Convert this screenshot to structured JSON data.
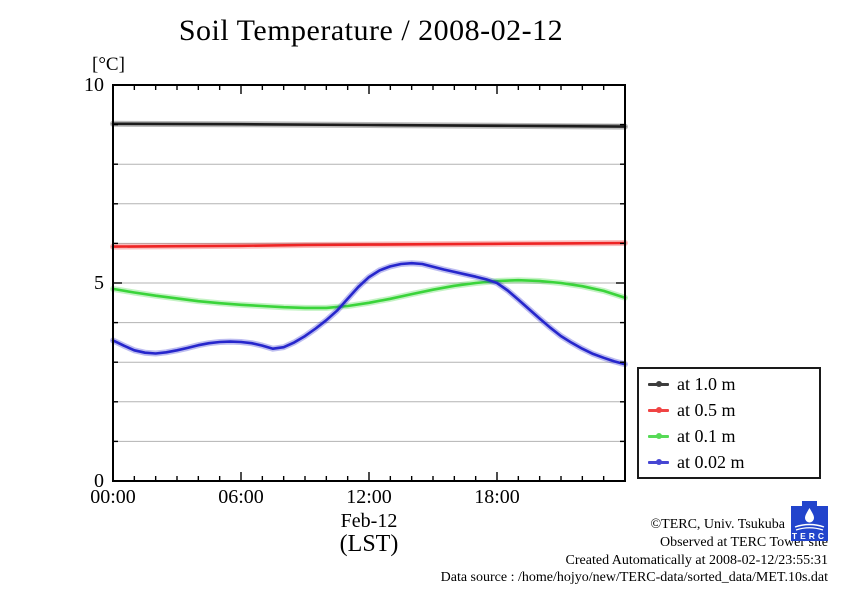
{
  "title": "Soil Temperature / 2008-02-12",
  "y_axis": {
    "unit": "[°C]",
    "tick_labels": [
      "10",
      "5",
      "0"
    ]
  },
  "x_axis": {
    "tick_labels": [
      "00:00",
      "06:00",
      "12:00",
      "18:00"
    ],
    "date_label": "Feb-12",
    "timezone_label": "(LST)"
  },
  "footer": {
    "copyright": "©TERC, Univ. Tsukuba",
    "observed": "Observed at TERC Tower site",
    "created": "Created Automatically at 2008-02-12/23:55:31",
    "datasource": "Data source : /home/hojyo/new/TERC-data/sorted_data/MET.10s.dat",
    "logo_text": "TERC"
  },
  "colors": {
    "grid": "#b3b3b3",
    "axis": "#000000",
    "logo_blue": "#2244cc"
  },
  "chart_data": {
    "type": "line",
    "title": "Soil Temperature / 2008-02-12",
    "xlabel": "Feb-12 (LST)",
    "ylabel": "[°C]",
    "xlim": [
      0,
      24
    ],
    "ylim": [
      0,
      10
    ],
    "x_unit": "hour of day",
    "x_major_ticks": [
      0,
      6,
      12,
      18
    ],
    "x_minor_tick_step": 1,
    "y_major_ticks": [
      0,
      5,
      10
    ],
    "y_minor_tick_step": 1,
    "grid": "horizontal gray gridlines at every 1 degree C",
    "legend_position": "outside right, lower",
    "series": [
      {
        "name": "at 1.0 m",
        "color": "#1c1c1c",
        "x": [
          0,
          6,
          12,
          18,
          24
        ],
        "y": [
          9.02,
          9.01,
          8.99,
          8.97,
          8.95
        ]
      },
      {
        "name": "at 0.5 m",
        "color": "#ee2424",
        "x": [
          0,
          3,
          6,
          9,
          12,
          15,
          18,
          21,
          24
        ],
        "y": [
          5.92,
          5.93,
          5.94,
          5.96,
          5.97,
          5.98,
          5.99,
          6.0,
          6.01
        ]
      },
      {
        "name": "at 0.1 m",
        "color": "#3ad43a",
        "x": [
          0,
          1,
          2,
          3,
          4,
          5,
          6,
          7,
          8,
          9,
          10,
          11,
          12,
          13,
          14,
          15,
          16,
          17,
          18,
          19,
          20,
          21,
          22,
          23,
          24
        ],
        "y": [
          4.85,
          4.76,
          4.68,
          4.61,
          4.54,
          4.49,
          4.45,
          4.42,
          4.39,
          4.37,
          4.37,
          4.42,
          4.5,
          4.6,
          4.72,
          4.83,
          4.93,
          5.0,
          5.05,
          5.07,
          5.05,
          5.0,
          4.92,
          4.8,
          4.63
        ]
      },
      {
        "name": "at 0.02 m",
        "color": "#2626cc",
        "x": [
          0,
          0.5,
          1,
          1.5,
          2,
          2.5,
          3,
          3.5,
          4,
          4.5,
          5,
          5.5,
          6,
          6.5,
          7,
          7.5,
          8,
          8.5,
          9,
          9.5,
          10,
          10.5,
          11,
          11.5,
          12,
          12.5,
          13,
          13.5,
          14,
          14.5,
          15,
          15.5,
          16,
          16.5,
          17,
          17.5,
          18,
          18.5,
          19,
          19.5,
          20,
          20.5,
          21,
          21.5,
          22,
          22.5,
          23,
          23.5,
          24
        ],
        "y": [
          3.55,
          3.42,
          3.3,
          3.24,
          3.22,
          3.25,
          3.3,
          3.36,
          3.43,
          3.48,
          3.51,
          3.52,
          3.51,
          3.48,
          3.42,
          3.34,
          3.38,
          3.5,
          3.66,
          3.85,
          4.06,
          4.3,
          4.6,
          4.9,
          5.15,
          5.32,
          5.42,
          5.48,
          5.5,
          5.48,
          5.41,
          5.34,
          5.28,
          5.22,
          5.16,
          5.09,
          5.0,
          4.81,
          4.58,
          4.34,
          4.1,
          3.87,
          3.66,
          3.49,
          3.34,
          3.21,
          3.11,
          3.02,
          2.95
        ]
      }
    ]
  }
}
